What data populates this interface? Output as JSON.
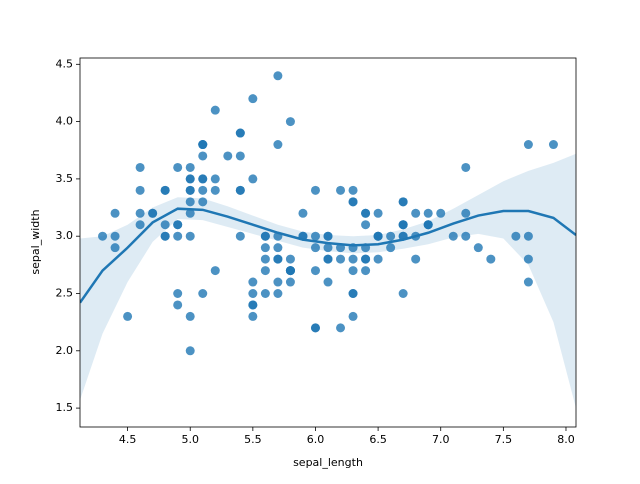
{
  "chart_data": {
    "type": "scatter",
    "x_label": "sepal_length",
    "y_label": "sepal_width",
    "color": "#1f77b4",
    "xlim": [
      4.12,
      8.08
    ],
    "ylim": [
      1.335,
      4.555
    ],
    "xticks": [
      4.5,
      {
        "value": 5,
        "label": "5.0"
      },
      5.5,
      {
        "value": 6,
        "label": "6.0"
      },
      6.5,
      {
        "value": 7,
        "label": "7.0"
      },
      7.5,
      {
        "value": 8,
        "label": "8.0"
      }
    ],
    "yticks": [
      1.5,
      {
        "value": 2,
        "label": "2.0"
      },
      2.5,
      {
        "value": 3,
        "label": "3.0"
      },
      3.5,
      {
        "value": 4,
        "label": "4.0"
      },
      4.5
    ],
    "x": [
      5.1,
      4.9,
      4.7,
      4.6,
      5.0,
      5.4,
      4.6,
      5.0,
      4.4,
      4.9,
      5.4,
      4.8,
      4.8,
      4.3,
      5.8,
      5.7,
      5.4,
      5.1,
      5.7,
      5.1,
      5.4,
      5.1,
      4.6,
      5.1,
      4.8,
      5.0,
      5.0,
      5.2,
      5.2,
      4.7,
      4.8,
      5.4,
      5.2,
      5.5,
      4.9,
      5.0,
      5.5,
      4.9,
      4.4,
      5.1,
      5.0,
      4.5,
      4.4,
      5.0,
      5.1,
      4.8,
      5.1,
      4.6,
      5.3,
      5.0,
      7.0,
      6.4,
      6.9,
      5.5,
      6.5,
      5.7,
      6.3,
      4.9,
      6.6,
      5.2,
      5.0,
      5.9,
      6.0,
      6.1,
      5.6,
      6.7,
      5.6,
      5.8,
      6.2,
      5.6,
      5.9,
      6.1,
      6.3,
      6.1,
      6.4,
      6.6,
      6.8,
      6.7,
      6.0,
      5.7,
      5.5,
      5.5,
      5.8,
      6.0,
      5.4,
      6.0,
      6.7,
      6.3,
      5.6,
      5.5,
      5.5,
      6.1,
      5.8,
      5.0,
      5.6,
      5.7,
      5.7,
      6.2,
      5.1,
      5.7,
      6.3,
      5.8,
      7.1,
      6.3,
      6.5,
      7.6,
      4.9,
      7.3,
      6.7,
      7.2,
      6.5,
      6.4,
      6.8,
      5.7,
      5.8,
      6.4,
      6.5,
      7.7,
      7.7,
      6.0,
      6.9,
      5.6,
      7.7,
      6.3,
      6.7,
      7.2,
      6.2,
      6.1,
      6.4,
      7.2,
      7.4,
      7.9,
      6.4,
      6.3,
      6.1,
      7.7,
      6.3,
      6.4,
      6.0,
      6.9,
      6.7,
      6.9,
      5.8,
      6.8,
      6.7,
      6.7,
      6.3,
      6.5,
      6.2,
      5.9
    ],
    "y": [
      3.5,
      3.0,
      3.2,
      3.1,
      3.6,
      3.9,
      3.4,
      3.4,
      2.9,
      3.1,
      3.7,
      3.4,
      3.0,
      3.0,
      4.0,
      4.4,
      3.9,
      3.5,
      3.8,
      3.8,
      3.4,
      3.7,
      3.6,
      3.3,
      3.4,
      3.0,
      3.4,
      3.5,
      3.4,
      3.2,
      3.1,
      3.4,
      4.1,
      4.2,
      3.1,
      3.2,
      3.5,
      3.6,
      3.0,
      3.4,
      3.5,
      2.3,
      3.2,
      3.5,
      3.8,
      3.0,
      3.8,
      3.2,
      3.7,
      3.3,
      3.2,
      3.2,
      3.1,
      2.3,
      2.8,
      2.8,
      3.3,
      2.4,
      2.9,
      2.7,
      2.0,
      3.0,
      2.2,
      2.9,
      2.9,
      3.1,
      3.0,
      2.7,
      2.2,
      2.5,
      3.2,
      2.8,
      2.5,
      2.8,
      2.9,
      3.0,
      2.8,
      3.0,
      2.9,
      2.6,
      2.4,
      2.4,
      2.7,
      2.7,
      3.0,
      3.4,
      3.1,
      2.3,
      3.0,
      2.5,
      2.6,
      3.0,
      2.6,
      2.3,
      2.7,
      3.0,
      2.9,
      2.9,
      2.5,
      2.8,
      3.3,
      2.7,
      3.0,
      2.9,
      3.0,
      3.0,
      2.5,
      2.9,
      2.5,
      3.6,
      3.2,
      2.7,
      3.0,
      2.5,
      2.8,
      3.2,
      3.0,
      3.8,
      2.6,
      2.2,
      3.2,
      2.8,
      2.8,
      2.7,
      3.3,
      3.2,
      2.8,
      3.0,
      2.8,
      3.0,
      2.8,
      3.8,
      2.8,
      2.8,
      2.6,
      3.0,
      3.4,
      3.1,
      3.0,
      3.1,
      3.1,
      3.1,
      2.7,
      3.2,
      3.3,
      3.0,
      2.5,
      3.0,
      3.4,
      3.0
    ],
    "fit": {
      "x": [
        4.12,
        4.3,
        4.5,
        4.7,
        4.9,
        5.1,
        5.3,
        5.5,
        5.7,
        5.9,
        6.1,
        6.3,
        6.5,
        6.7,
        6.9,
        7.1,
        7.3,
        7.5,
        7.7,
        7.9,
        8.08
      ],
      "y": [
        2.42,
        2.7,
        2.9,
        3.12,
        3.24,
        3.23,
        3.17,
        3.1,
        3.03,
        2.97,
        2.94,
        2.92,
        2.93,
        2.97,
        3.03,
        3.11,
        3.18,
        3.22,
        3.22,
        3.16,
        3.01
      ],
      "ci_upper": [
        2.98,
        3.0,
        3.1,
        3.25,
        3.34,
        3.33,
        3.26,
        3.18,
        3.1,
        3.04,
        3.01,
        3.0,
        3.01,
        3.06,
        3.13,
        3.24,
        3.36,
        3.48,
        3.57,
        3.64,
        3.72
      ],
      "ci_lower": [
        1.57,
        2.15,
        2.6,
        2.95,
        3.15,
        3.14,
        3.08,
        3.02,
        2.96,
        2.9,
        2.87,
        2.85,
        2.86,
        2.89,
        2.93,
        2.99,
        3.02,
        2.98,
        2.75,
        2.25,
        1.5
      ]
    }
  }
}
